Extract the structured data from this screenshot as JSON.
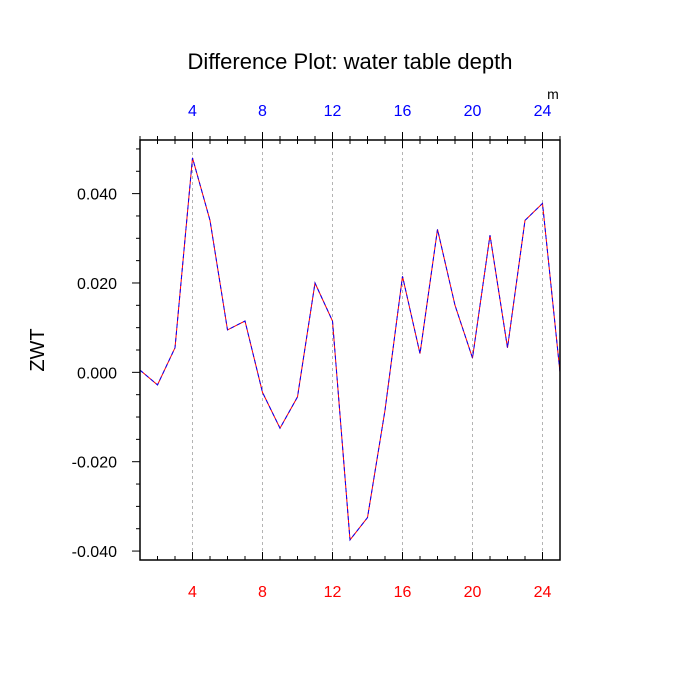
{
  "chart_data": {
    "type": "line",
    "title": "Difference Plot: water table depth",
    "ylabel": "ZWT",
    "top_axis_unit": "m",
    "xlim": [
      1,
      25
    ],
    "ylim": [
      -0.042,
      0.052
    ],
    "x_ticks": [
      4,
      8,
      12,
      16,
      20,
      24
    ],
    "y_ticks": [
      -0.04,
      -0.02,
      0.0,
      0.02,
      0.04
    ],
    "y_tick_labels": [
      "-0.040",
      "-0.020",
      "0.000",
      "0.020",
      "0.040"
    ],
    "grid": "vertical-dashed",
    "colors": {
      "bottom_tick_labels": "#ff0000",
      "top_tick_labels": "#0000ff",
      "series_red": "#ff0000",
      "series_blue": "#0000ff",
      "grid": "#b4b4b4"
    },
    "series": [
      {
        "x": [
          1,
          2,
          3,
          4,
          5,
          6,
          7,
          8,
          9,
          10,
          11,
          12,
          13,
          14,
          15,
          16,
          17,
          18,
          19,
          20,
          21,
          22,
          23,
          24,
          25
        ],
        "values": [
          0.0005,
          -0.0028,
          0.0055,
          0.048,
          0.034,
          0.0095,
          0.0115,
          -0.0045,
          -0.0125,
          -0.0055,
          0.02,
          0.0115,
          -0.0375,
          -0.0325,
          -0.0085,
          0.0215,
          0.0042,
          0.032,
          0.015,
          0.0032,
          0.0307,
          0.0055,
          0.034,
          0.0378,
          0.0
        ]
      }
    ]
  }
}
